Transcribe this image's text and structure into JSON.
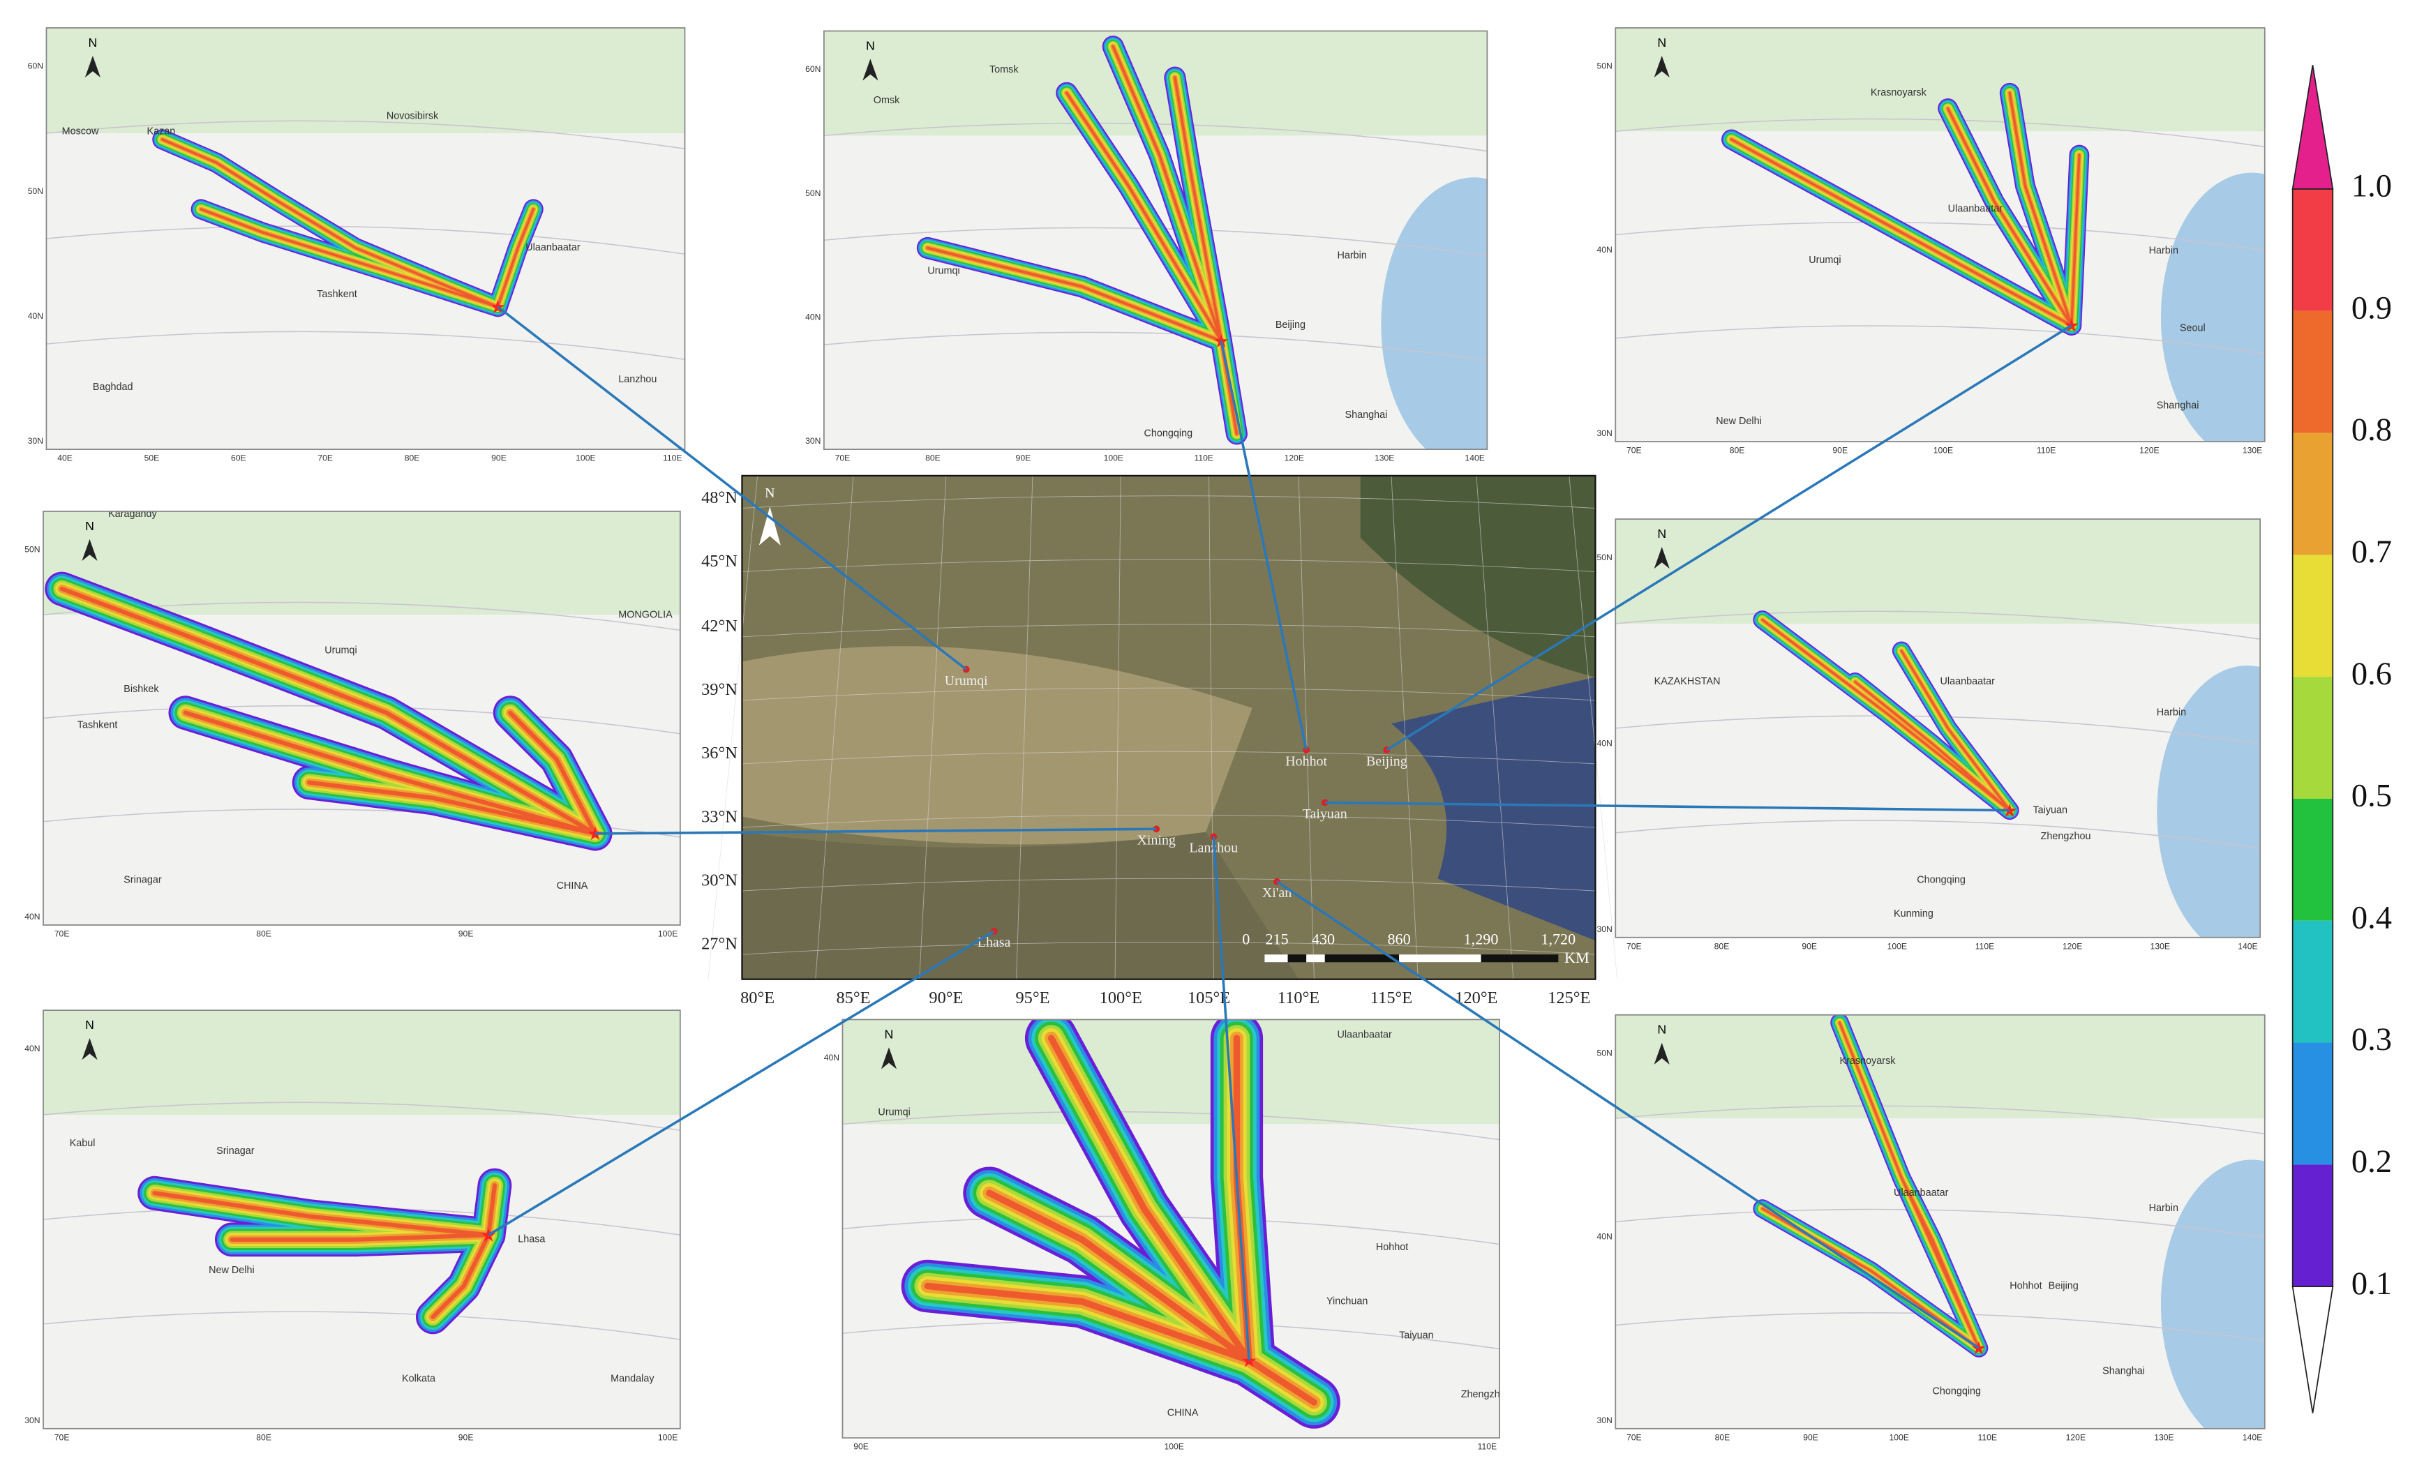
{
  "north": "N",
  "colorbar": {
    "ticks": [
      "1.0",
      "0.9",
      "0.8",
      "0.7",
      "0.6",
      "0.5",
      "0.4",
      "0.3",
      "0.2",
      "0.1"
    ]
  },
  "central_map": {
    "lat_labels": [
      "48°N",
      "45°N",
      "42°N",
      "39°N",
      "36°N",
      "33°N",
      "30°N",
      "27°N"
    ],
    "lon_labels": [
      "80°E",
      "85°E",
      "90°E",
      "95°E",
      "100°E",
      "105°E",
      "110°E",
      "115°E",
      "120°E",
      "125°E"
    ],
    "cities": [
      "Urumqi",
      "Hohhot",
      "Beijing",
      "Taiyuan",
      "Xining",
      "Lanzhou",
      "Xi'an",
      "Lhasa"
    ],
    "scale_bar": {
      "values": [
        "0",
        "215",
        "430",
        "860",
        "1,290",
        "1,720"
      ],
      "unit": "KM"
    }
  },
  "panels": [
    {
      "lat_labels": [
        "60N",
        "50N",
        "40N",
        "30N"
      ],
      "lon_labels": [
        "40E",
        "50E",
        "60E",
        "70E",
        "80E",
        "90E",
        "100E",
        "110E"
      ],
      "places": [
        "Moscow",
        "Kazan",
        "Novosibirsk",
        "Ulaanbaatar",
        "Tashkent",
        "Baghdad",
        "Lanzhou"
      ]
    },
    {
      "lat_labels": [
        "60N",
        "50N",
        "40N",
        "30N"
      ],
      "lon_labels": [
        "70E",
        "80E",
        "90E",
        "100E",
        "110E",
        "120E",
        "130E",
        "140E"
      ],
      "places": [
        "Omsk",
        "Tomsk",
        "Urumqi",
        "Harbin",
        "Beijing",
        "Shanghai",
        "Chongqing"
      ]
    },
    {
      "lat_labels": [
        "50N",
        "40N",
        "30N"
      ],
      "lon_labels": [
        "70E",
        "80E",
        "90E",
        "100E",
        "110E",
        "120E",
        "130E"
      ],
      "places": [
        "Krasnoyarsk",
        "Ulaanbaatar",
        "Urumqi",
        "Harbin",
        "Seoul",
        "Shanghai",
        "New Delhi"
      ]
    },
    {
      "lat_labels": [
        "50N",
        "40N"
      ],
      "lon_labels": [
        "70E",
        "80E",
        "90E",
        "100E"
      ],
      "places": [
        "Karagandy",
        "Urumqi",
        "Tashkent",
        "Bishkek",
        "Srinagar",
        "MONGOLIA",
        "CHINA"
      ]
    },
    {
      "lat_labels": [
        "50N",
        "40N",
        "30N"
      ],
      "lon_labels": [
        "70E",
        "80E",
        "90E",
        "100E",
        "110E",
        "120E",
        "130E",
        "140E"
      ],
      "places": [
        "KAZAKHSTAN",
        "Ulaanbaatar",
        "Harbin",
        "Taiyuan",
        "Zhengzhou",
        "Chongqing",
        "Kunming"
      ]
    },
    {
      "lat_labels": [
        "40N",
        "30N"
      ],
      "lon_labels": [
        "70E",
        "80E",
        "90E",
        "100E"
      ],
      "places": [
        "Kabul",
        "Srinagar",
        "Lhasa",
        "New Delhi",
        "Kolkata",
        "Mandalay"
      ]
    },
    {
      "lat_labels": [
        "40N"
      ],
      "lon_labels": [
        "90E",
        "100E",
        "110E"
      ],
      "places": [
        "Ulaanbaatar",
        "Urumqi",
        "Hohhot",
        "Yinchuan",
        "Taiyuan",
        "Zhengzhou",
        "CHINA"
      ]
    },
    {
      "lat_labels": [
        "50N",
        "40N",
        "30N"
      ],
      "lon_labels": [
        "70E",
        "80E",
        "90E",
        "100E",
        "110E",
        "120E",
        "130E",
        "140E"
      ],
      "places": [
        "Krasnoyarsk",
        "Ulaanbaatar",
        "Harbin",
        "Hohhot",
        "Beijing",
        "Chongqing",
        "Shanghai"
      ]
    }
  ]
}
